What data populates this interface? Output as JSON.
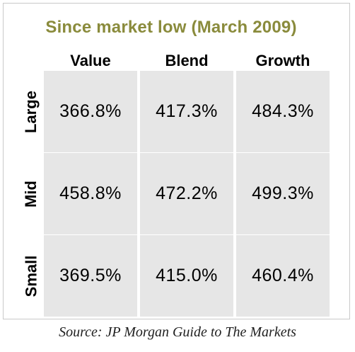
{
  "chart_data": {
    "type": "table",
    "title": "Since market low (March 2009)",
    "columns": [
      "Value",
      "Blend",
      "Growth"
    ],
    "rows": [
      "Large",
      "Mid",
      "Small"
    ],
    "cells": [
      [
        "366.8%",
        "417.3%",
        "484.3%"
      ],
      [
        "458.8%",
        "472.2%",
        "499.3%"
      ],
      [
        "369.5%",
        "415.0%",
        "460.4%"
      ]
    ],
    "values": [
      [
        366.8,
        417.3,
        484.3
      ],
      [
        458.8,
        472.2,
        499.3
      ],
      [
        369.5,
        415.0,
        460.4
      ]
    ],
    "unit": "%"
  },
  "colors": {
    "title": "#8a8b3c",
    "cell_background": "#e6e6e6"
  },
  "source": "Source: JP Morgan Guide to The Markets"
}
